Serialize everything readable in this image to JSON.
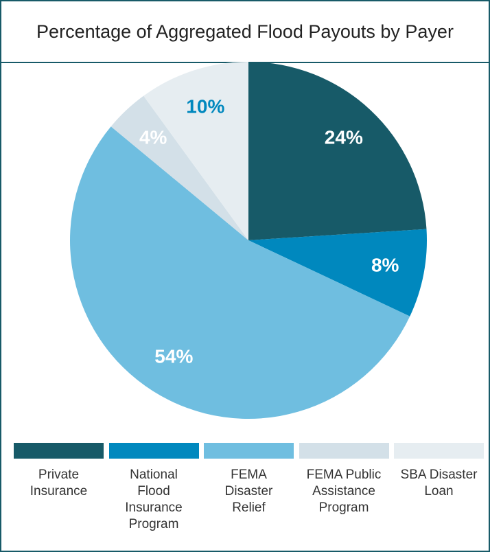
{
  "chart_data": {
    "type": "pie",
    "title": "Percentage of Aggregated Flood Payouts by Payer",
    "categories": [
      "Private Insurance",
      "National Flood Insurance Program",
      "FEMA Disaster Relief",
      "FEMA Public Assistance Program",
      "SBA Disaster Loan"
    ],
    "values": [
      24,
      8,
      54,
      4,
      10
    ],
    "value_labels": [
      "24%",
      "8%",
      "54%",
      "4%",
      "10%"
    ],
    "colors": [
      "#175a68",
      "#0088be",
      "#6fbee0",
      "#d3e0e8",
      "#e6edf1"
    ],
    "label_colors": [
      "#ffffff",
      "#ffffff",
      "#ffffff",
      "#ffffff",
      "#0088be"
    ],
    "legend": "bottom"
  }
}
